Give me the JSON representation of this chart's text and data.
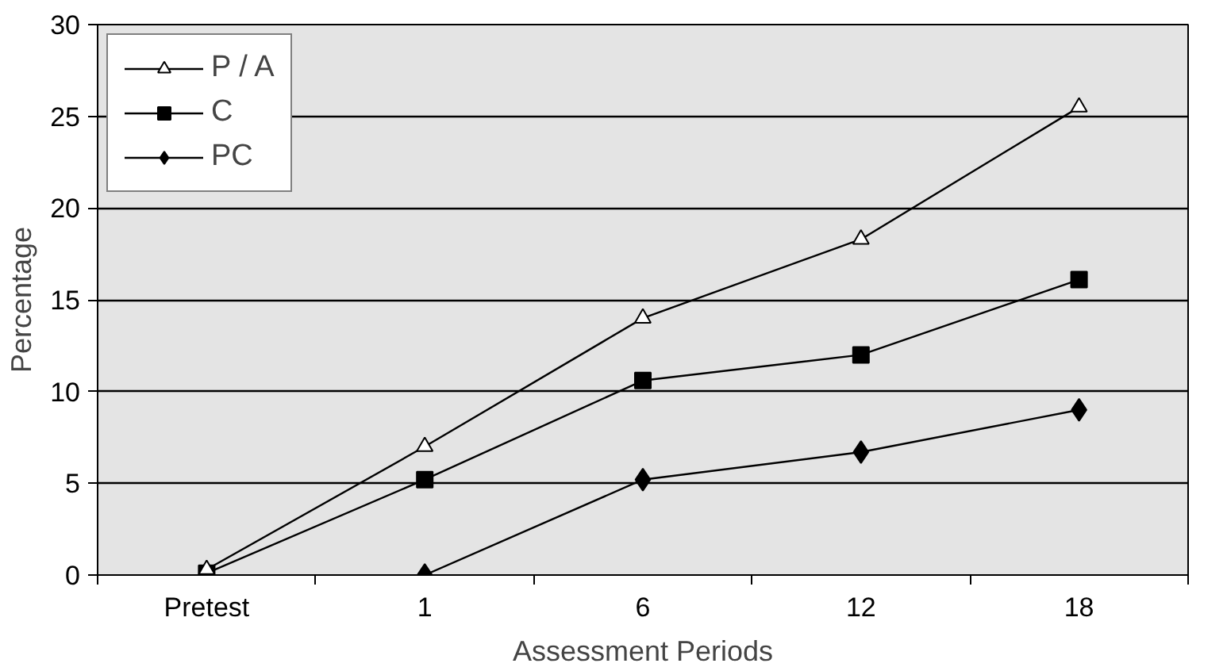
{
  "chart_data": {
    "type": "line",
    "xlabel": "Assessment Periods",
    "ylabel": "Percentage",
    "categories": [
      "Pretest",
      "1",
      "6",
      "12",
      "18"
    ],
    "series": [
      {
        "name": "P / A",
        "color": "#000000",
        "marker": "triangle",
        "values": [
          0.3,
          7,
          14,
          18.3,
          25.5
        ]
      },
      {
        "name": "C",
        "color": "#000000",
        "marker": "square",
        "values": [
          0.1,
          5.2,
          10.6,
          12,
          16.1
        ]
      },
      {
        "name": "PC",
        "color": "#000000",
        "marker": "diamond",
        "values": [
          null,
          0,
          5.2,
          6.7,
          9
        ]
      }
    ],
    "ylim": [
      0,
      30
    ],
    "yticks": [
      0,
      5,
      10,
      15,
      20,
      25,
      30
    ],
    "grid": "y",
    "legend": "top left"
  }
}
